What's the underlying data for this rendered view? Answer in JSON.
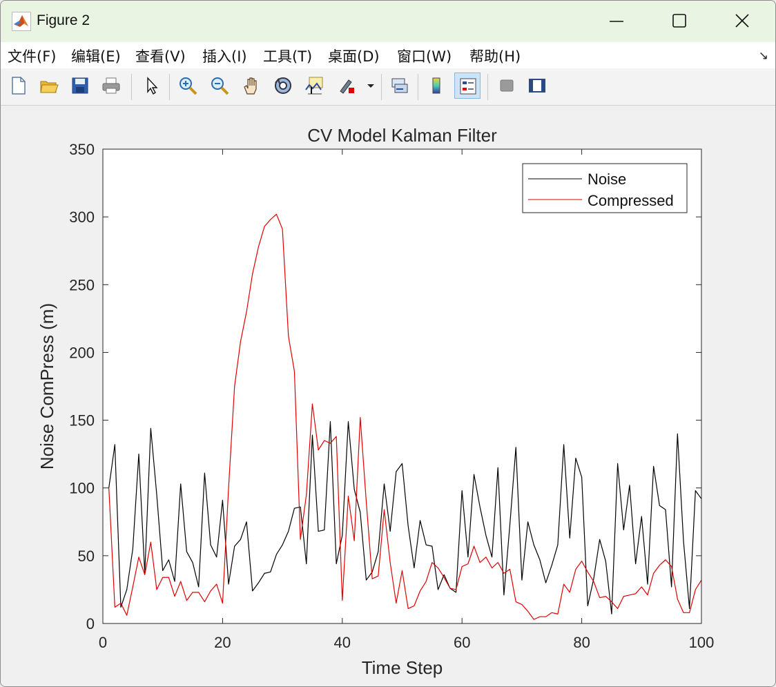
{
  "window": {
    "title": "Figure 2"
  },
  "menu": [
    {
      "label": "文件(F)"
    },
    {
      "label": "编辑(E)"
    },
    {
      "label": "查看(V)"
    },
    {
      "label": "插入(I)"
    },
    {
      "label": "工具(T)"
    },
    {
      "label": "桌面(D)"
    },
    {
      "label": "窗口(W)"
    },
    {
      "label": "帮助(H)"
    }
  ],
  "toolbar": {
    "buttons": [
      {
        "icon": "new-figure-icon"
      },
      {
        "icon": "open-icon"
      },
      {
        "icon": "save-icon"
      },
      {
        "icon": "print-icon"
      },
      {
        "icon": "pointer-icon"
      },
      {
        "icon": "zoom-in-icon"
      },
      {
        "icon": "zoom-out-icon"
      },
      {
        "icon": "pan-icon"
      },
      {
        "icon": "rotate-3d-icon"
      },
      {
        "icon": "data-cursor-icon"
      },
      {
        "icon": "brush-icon"
      },
      {
        "icon": "link-plot-icon"
      },
      {
        "icon": "colorbar-icon"
      },
      {
        "icon": "legend-icon"
      },
      {
        "icon": "hide-plot-tools-icon"
      },
      {
        "icon": "show-plot-tools-icon"
      }
    ],
    "active": "legend-icon"
  },
  "chart_data": {
    "type": "line",
    "title": "CV Model Kalman Filter",
    "xlabel": "Time Step",
    "ylabel": "Noise ComPress (m)",
    "xlim": [
      0,
      100
    ],
    "ylim": [
      0,
      350
    ],
    "xticks": [
      0,
      20,
      40,
      60,
      80,
      100
    ],
    "yticks": [
      0,
      50,
      100,
      150,
      200,
      250,
      300,
      350
    ],
    "grid": false,
    "legend_position": "top-right",
    "series": [
      {
        "name": "Noise",
        "color": "#000000",
        "x": [
          1,
          2,
          3,
          4,
          5,
          6,
          7,
          8,
          9,
          10,
          11,
          12,
          13,
          14,
          15,
          16,
          17,
          18,
          19,
          20,
          21,
          22,
          23,
          24,
          25,
          26,
          27,
          28,
          29,
          30,
          31,
          32,
          33,
          34,
          35,
          36,
          37,
          38,
          39,
          40,
          41,
          42,
          43,
          44,
          45,
          46,
          47,
          48,
          49,
          50,
          51,
          52,
          53,
          54,
          55,
          56,
          57,
          58,
          59,
          60,
          61,
          62,
          63,
          64,
          65,
          66,
          67,
          68,
          69,
          70,
          71,
          72,
          73,
          74,
          75,
          76,
          77,
          78,
          79,
          80,
          81,
          82,
          83,
          84,
          85,
          86,
          87,
          88,
          89,
          90,
          91,
          92,
          93,
          94,
          95,
          96,
          97,
          98,
          99,
          100
        ],
        "y": [
          100,
          132,
          12,
          25,
          55,
          125,
          37,
          144,
          95,
          39,
          47,
          31,
          103,
          53,
          45,
          27,
          111,
          58,
          49,
          91,
          29,
          57,
          62,
          75,
          24,
          30,
          37,
          38,
          51,
          58,
          68,
          85,
          86,
          44,
          139,
          68,
          69,
          149,
          44,
          65,
          149,
          99,
          82,
          32,
          38,
          53,
          103,
          68,
          112,
          118,
          72,
          41,
          76,
          58,
          57,
          25,
          36,
          26,
          23,
          98,
          49,
          110,
          86,
          65,
          49,
          115,
          21,
          73,
          130,
          32,
          75,
          58,
          47,
          30,
          43,
          58,
          132,
          63,
          122,
          108,
          13,
          33,
          62,
          46,
          7,
          118,
          69,
          102,
          44,
          79,
          29,
          116,
          87,
          84,
          27,
          140,
          61,
          11,
          98,
          92
        ]
      },
      {
        "name": "Compressed",
        "color": "#e00000",
        "x": [
          1,
          2,
          3,
          4,
          5,
          6,
          7,
          8,
          9,
          10,
          11,
          12,
          13,
          14,
          15,
          16,
          17,
          18,
          19,
          20,
          21,
          22,
          23,
          24,
          25,
          26,
          27,
          28,
          29,
          30,
          31,
          32,
          33,
          34,
          35,
          36,
          37,
          38,
          39,
          40,
          41,
          42,
          43,
          44,
          45,
          46,
          47,
          48,
          49,
          50,
          51,
          52,
          53,
          54,
          55,
          56,
          57,
          58,
          59,
          60,
          61,
          62,
          63,
          64,
          65,
          66,
          67,
          68,
          69,
          70,
          71,
          72,
          73,
          74,
          75,
          76,
          77,
          78,
          79,
          80,
          81,
          82,
          83,
          84,
          85,
          86,
          87,
          88,
          89,
          90,
          91,
          92,
          93,
          94,
          95,
          96,
          97,
          98,
          99,
          100
        ],
        "y": [
          100,
          12,
          15,
          6,
          27,
          49,
          36,
          60,
          25,
          34,
          34,
          20,
          31,
          17,
          23,
          23,
          16,
          24,
          29,
          15,
          100,
          175,
          208,
          230,
          258,
          278,
          293,
          298,
          302,
          291,
          212,
          186,
          62,
          95,
          162,
          128,
          135,
          133,
          138,
          17,
          94,
          61,
          152,
          90,
          33,
          35,
          84,
          45,
          15,
          39,
          11,
          13,
          24,
          31,
          45,
          41,
          34,
          26,
          25,
          42,
          44,
          57,
          45,
          49,
          41,
          45,
          37,
          40,
          16,
          14,
          9,
          3,
          5,
          5,
          8,
          7,
          29,
          23,
          40,
          46,
          38,
          31,
          19,
          20,
          16,
          11,
          20,
          21,
          22,
          27,
          21,
          37,
          43,
          47,
          42,
          18,
          8,
          8,
          25,
          32
        ]
      }
    ]
  }
}
